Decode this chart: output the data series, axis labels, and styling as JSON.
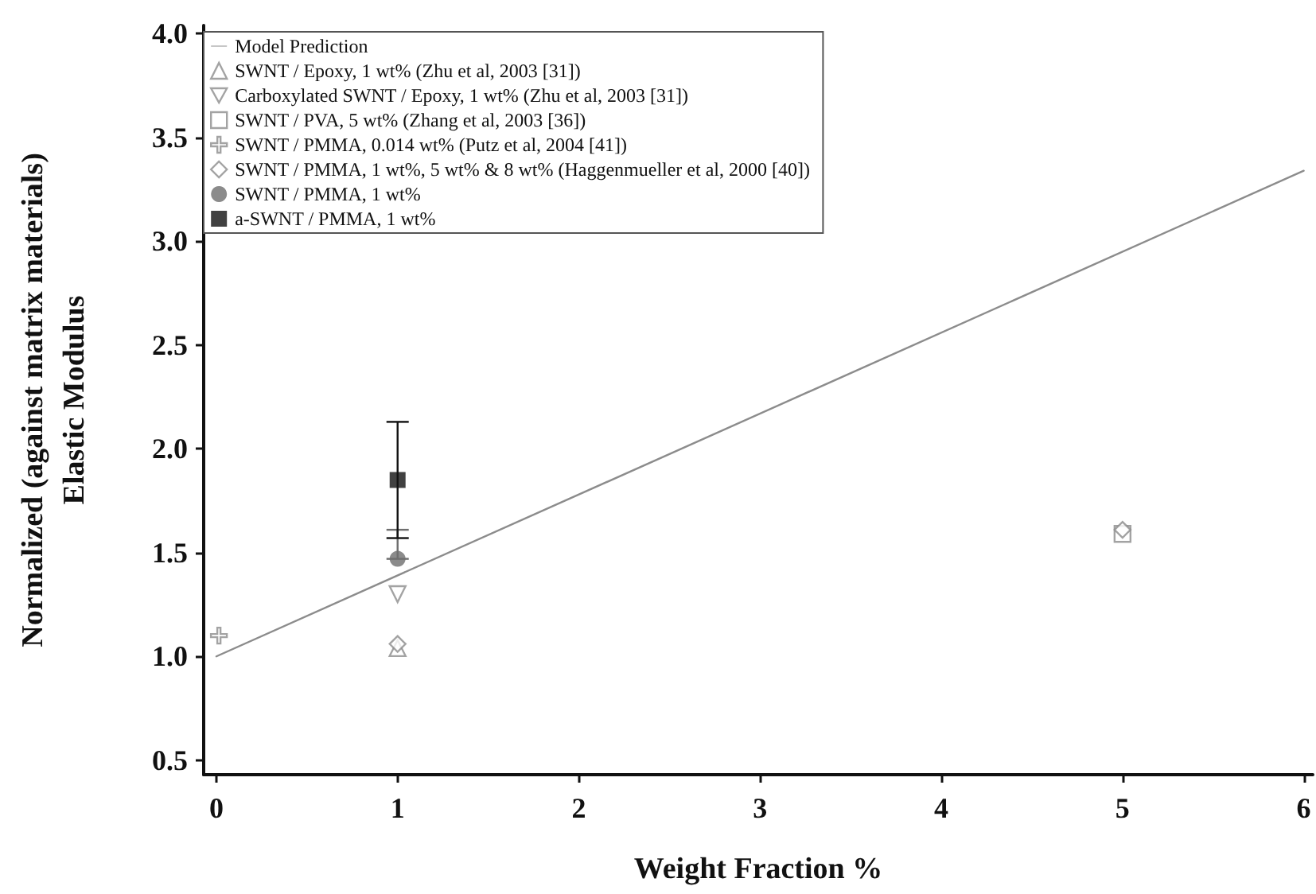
{
  "chart_data": {
    "type": "scatter",
    "xlabel": "Weight Fraction %",
    "ylabel": "Normalized (against matrix materials)\nElastic Modulus",
    "xlim": [
      -0.07,
      6.05
    ],
    "ylim": [
      0.43,
      4.04
    ],
    "xticks": [
      0,
      1,
      2,
      3,
      4,
      5,
      6
    ],
    "yticks": [
      {
        "value": 0.5,
        "label": "0.5"
      },
      {
        "value": 1,
        "label": "1.0"
      },
      {
        "value": 1.5,
        "label": "1.5"
      },
      {
        "value": 2,
        "label": "2.0"
      },
      {
        "value": 2.5,
        "label": "2.5"
      },
      {
        "value": 3,
        "label": "3.0"
      },
      {
        "value": 3.5,
        "label": "3.5"
      },
      {
        "value": 4,
        "label": "4.0"
      }
    ],
    "grid": false,
    "legend": "top left",
    "series": [
      {
        "name": "Model Prediction",
        "type": "line",
        "color": "#8c8c8c",
        "marker": "none",
        "line_style": "solid",
        "x": [
          0,
          6
        ],
        "values": [
          1.0,
          3.34
        ]
      },
      {
        "name": "SWNT / Epoxy, 1 wt% (Zhu et al, 2003 [31])",
        "color": "#8c8c8c",
        "marker": "triangle",
        "x": [
          1
        ],
        "values": [
          1.04
        ]
      },
      {
        "name": "Carboxylated SWNT / Epoxy, 1 wt% (Zhu et al, 2003 [31])",
        "color": "#8c8c8c",
        "marker": "triangle",
        "x": [
          1
        ],
        "values": [
          1.3
        ]
      },
      {
        "name": "SWNT / PVA, 5 wt% (Zhang et al, 2003 [36])",
        "color": "#8c8c8c",
        "marker": "square",
        "x": [
          5
        ],
        "values": [
          1.59
        ]
      },
      {
        "name": "SWNT / PMMA, 0.014 wt% (Putz et al, 2004 [41])",
        "color": "#8c8c8c",
        "marker": "cross",
        "x": [
          0.014
        ],
        "values": [
          1.1
        ]
      },
      {
        "name": "SWNT / PMMA, 1 wt%, 5 wt% & 8 wt% (Haggenmueller et al, 2000 [40])",
        "color": "#8c8c8c",
        "marker": "diamond",
        "x": [
          1,
          5
        ],
        "values": [
          1.06,
          1.61
        ]
      },
      {
        "name": "SWNT / PMMA, 1 wt%",
        "color": "#6e6e6e",
        "marker": "circle",
        "x": [
          1
        ],
        "values": [
          1.47
        ],
        "errors": [
          [
            1.47,
            1.61
          ]
        ]
      },
      {
        "name": "a-SWNT / PMMA, 1 wt%",
        "color": "#111111",
        "marker": "square",
        "x": [
          1
        ],
        "values": [
          1.85
        ],
        "errors": [
          [
            1.57,
            2.13
          ]
        ]
      }
    ]
  }
}
